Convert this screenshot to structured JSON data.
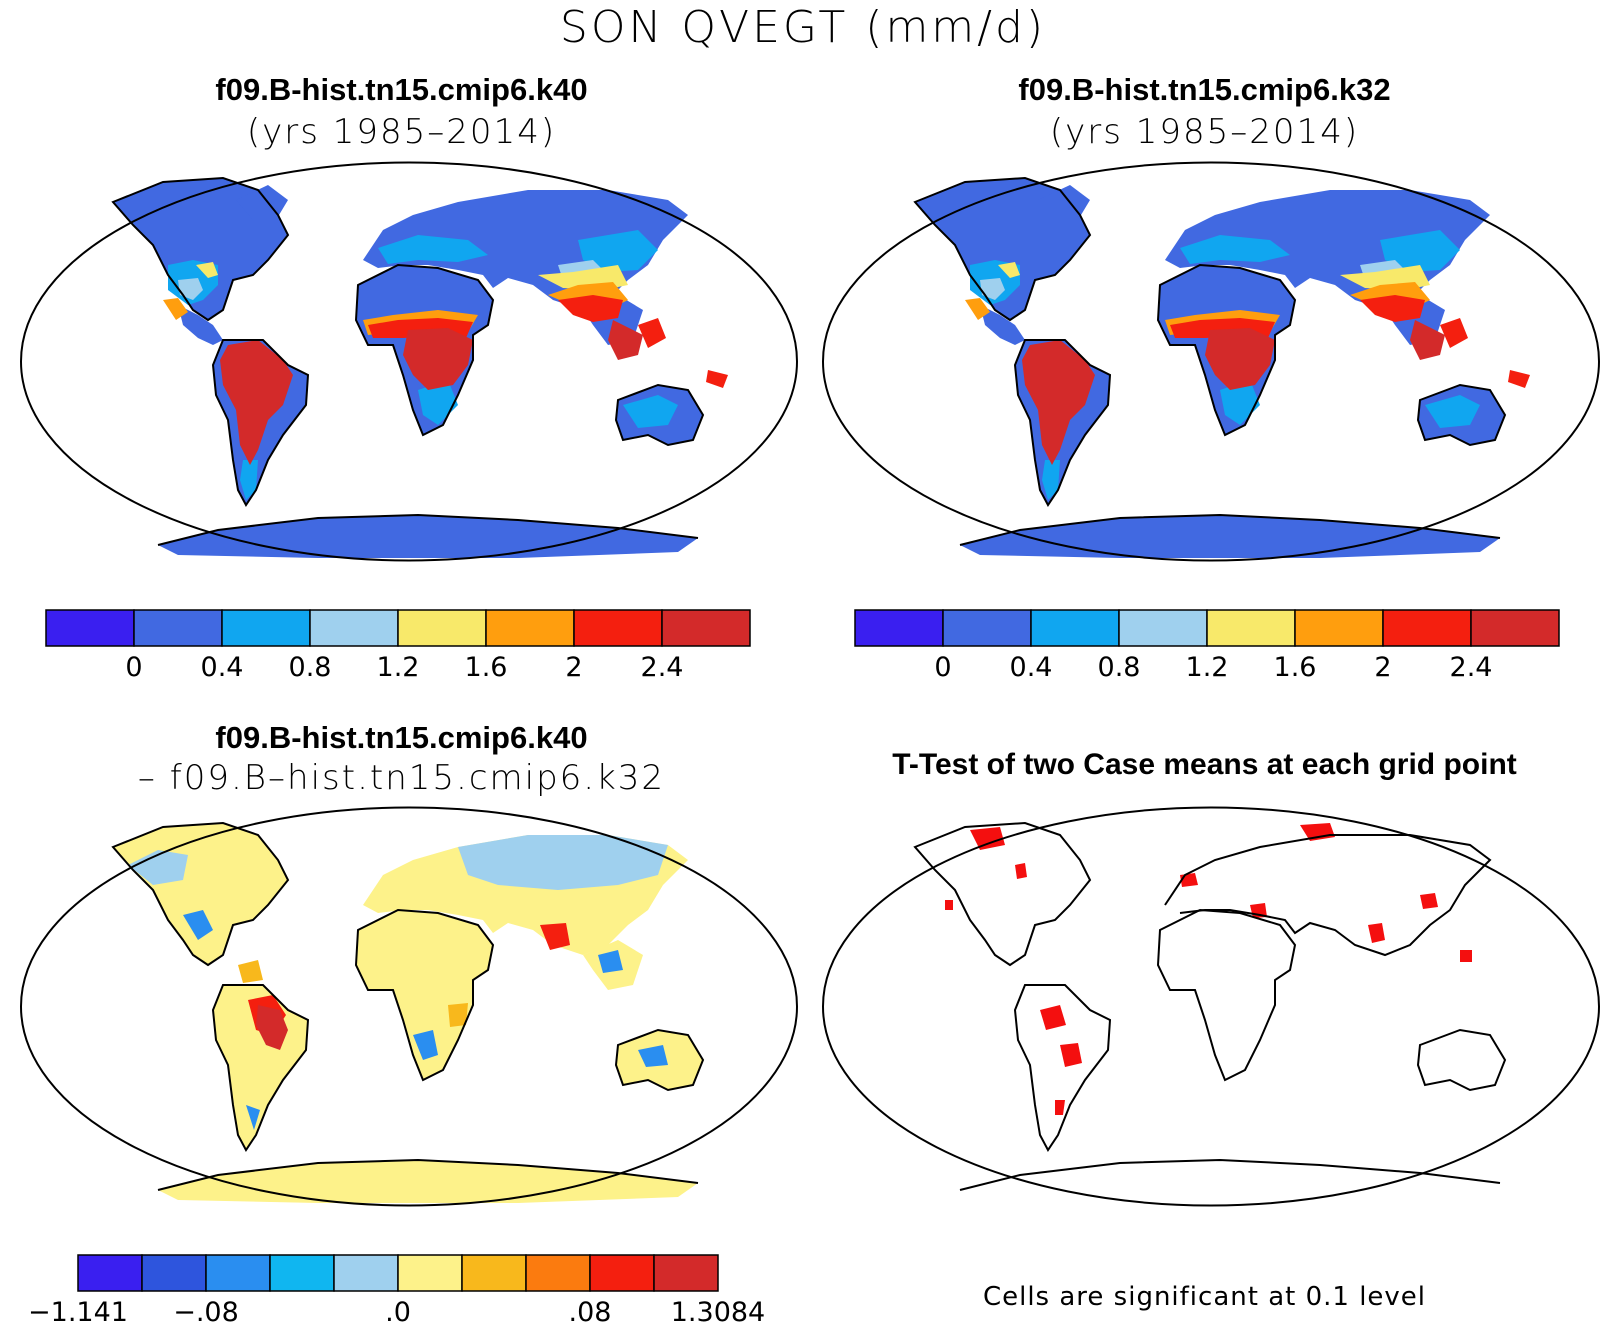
{
  "title": "SON QVEGT (mm/d)",
  "panels": [
    {
      "case": "f09.B-hist.tn15.cmip6.k40",
      "subtitle": "(yrs 1985–2014)"
    },
    {
      "case": "f09.B-hist.tn15.cmip6.k32",
      "subtitle": "(yrs 1985–2014)"
    },
    {
      "case": "f09.B-hist.tn15.cmip6.k40",
      "subtitle": "– f09.B–hist.tn15.cmip6.k32"
    },
    {
      "case": "T-Test of two Case means at each grid point"
    }
  ],
  "colorbars": {
    "mean": {
      "colors": [
        "#3a1ff0",
        "#4169e1",
        "#10a6f0",
        "#9fd0ee",
        "#f8e96a",
        "#ff9e0e",
        "#f41f0f",
        "#d32a2a"
      ],
      "tick_labels": [
        "0",
        "0.4",
        "0.8",
        "1.2",
        "1.6",
        "2",
        "2.4"
      ]
    },
    "diff": {
      "colors": [
        "#3a1ff0",
        "#2e55dd",
        "#2a8ef0",
        "#10b6f0",
        "#9fd0ee",
        "#fdf28a",
        "#f8b81c",
        "#fb7b0f",
        "#f41f0f",
        "#d32a2a"
      ],
      "tick_labels": [
        "−1.141",
        "−.08",
        ".0",
        ".08",
        "1.3084"
      ]
    }
  },
  "footnote": "Cells are significant at 0.1 level"
}
